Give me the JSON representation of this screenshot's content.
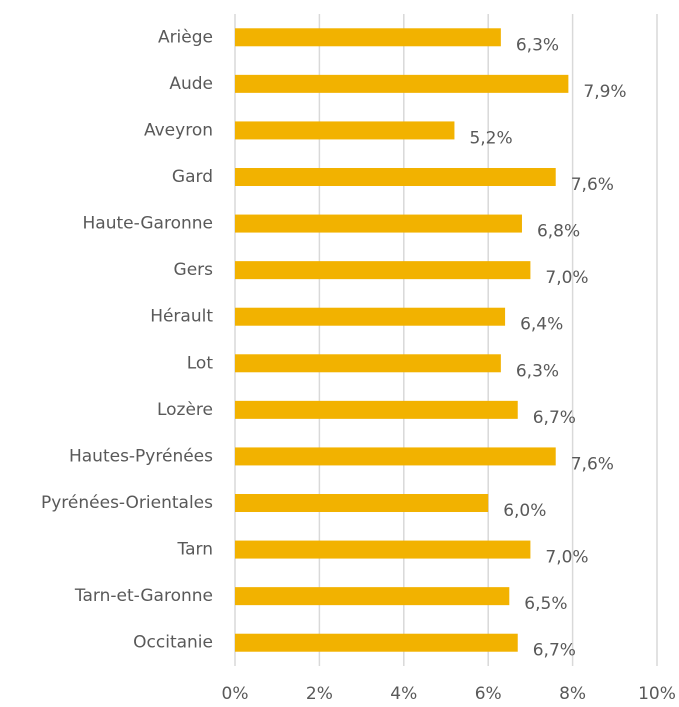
{
  "chart_data": {
    "type": "bar",
    "orientation": "horizontal",
    "categories": [
      "Ariège",
      "Aude",
      "Aveyron",
      "Gard",
      "Haute-Garonne",
      "Gers",
      "Hérault",
      "Lot",
      "Lozère",
      "Hautes-Pyrénées",
      "Pyrénées-Orientales",
      "Tarn",
      "Tarn-et-Garonne",
      "Occitanie"
    ],
    "values": [
      6.3,
      7.9,
      5.2,
      7.6,
      6.8,
      7.0,
      6.4,
      6.3,
      6.7,
      7.6,
      6.0,
      7.0,
      6.5,
      6.7
    ],
    "value_labels": [
      "6,3%",
      "7,9%",
      "5,2%",
      "7,6%",
      "6,8%",
      "7,0%",
      "6,4%",
      "6,3%",
      "6,7%",
      "7,6%",
      "6,0%",
      "7,0%",
      "6,5%",
      "6,7%"
    ],
    "color": "#f2b200",
    "xlim": [
      0,
      10
    ],
    "xticks": [
      {
        "value": 0,
        "label": "0%"
      },
      {
        "value": 2,
        "label": "2%"
      },
      {
        "value": 4,
        "label": "4%"
      },
      {
        "value": 6,
        "label": "6%"
      },
      {
        "value": 8,
        "label": "8%"
      },
      {
        "value": 10,
        "label": "10%"
      }
    ],
    "grid": true
  }
}
